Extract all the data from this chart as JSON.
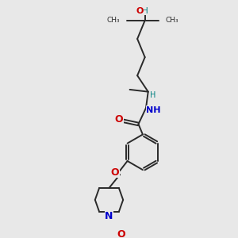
{
  "bg_color": "#e8e8e8",
  "bond_color": "#2a2a2a",
  "oxygen_color": "#cc0000",
  "nitrogen_color": "#0000cc",
  "teal_color": "#008080",
  "figsize": [
    3.0,
    3.0
  ],
  "dpi": 100,
  "xlim": [
    0,
    10
  ],
  "ylim": [
    0,
    10
  ]
}
